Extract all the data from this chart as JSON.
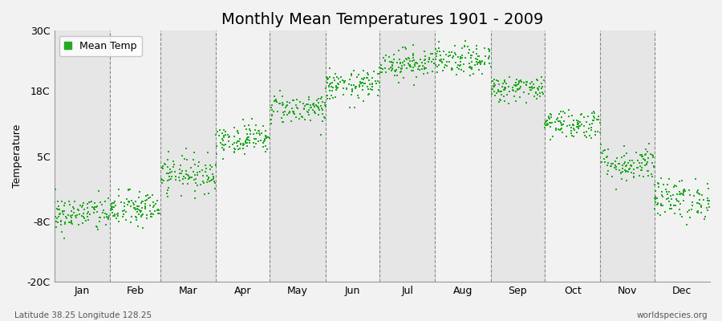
{
  "title": "Monthly Mean Temperatures 1901 - 2009",
  "ylabel": "Temperature",
  "months": [
    "Jan",
    "Feb",
    "Mar",
    "Apr",
    "May",
    "Jun",
    "Jul",
    "Aug",
    "Sep",
    "Oct",
    "Nov",
    "Dec"
  ],
  "month_days": [
    31,
    28,
    31,
    30,
    31,
    30,
    31,
    31,
    30,
    31,
    30,
    31
  ],
  "ylim": [
    -20,
    30
  ],
  "yticks": [
    -20,
    -8,
    5,
    18,
    30
  ],
  "ytick_labels": [
    "-20C",
    "-8C",
    "5C",
    "18C",
    "30C"
  ],
  "mean_temps": [
    -6.5,
    -5.5,
    1.5,
    8.5,
    14.5,
    19.0,
    23.5,
    24.0,
    18.5,
    11.5,
    3.5,
    -3.5
  ],
  "std_temps": [
    1.8,
    1.8,
    1.8,
    1.5,
    1.5,
    1.5,
    1.5,
    1.5,
    1.3,
    1.5,
    1.8,
    2.0
  ],
  "n_years": 109,
  "dot_color": "#22AA22",
  "dot_size": 3,
  "bg_color": "#F2F2F2",
  "plot_bg_light": "#F2F2F2",
  "plot_bg_dark": "#E6E6E6",
  "legend_label": "Mean Temp",
  "bottom_left": "Latitude 38.25 Longitude 128.25",
  "bottom_right": "worldspecies.org",
  "title_fontsize": 14,
  "label_fontsize": 9,
  "tick_fontsize": 9,
  "seed": 42
}
